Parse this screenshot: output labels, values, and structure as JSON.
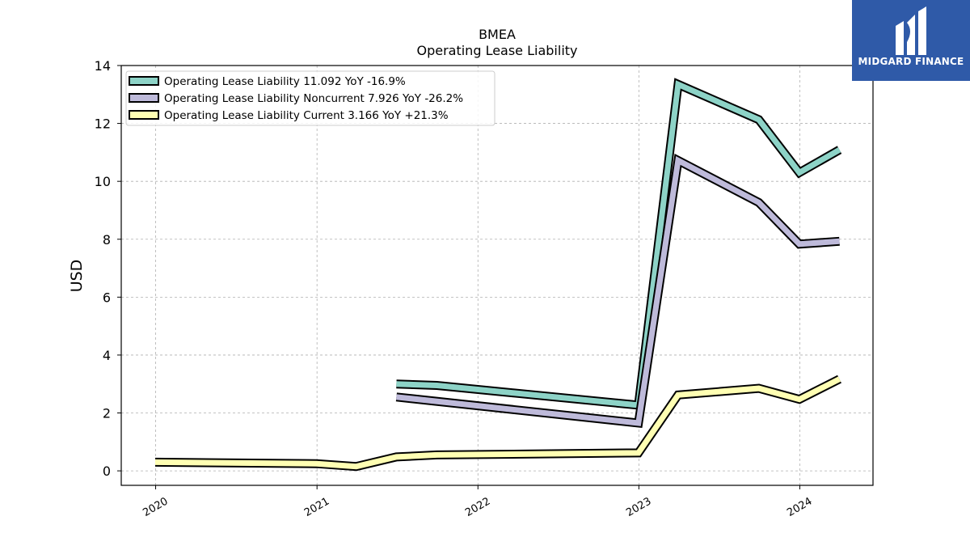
{
  "chart_data": {
    "type": "line",
    "title": "BMEA",
    "subtitle": "Operating Lease Liability",
    "xlabel": "",
    "ylabel": "USD",
    "x_tick_labels": [
      "2020",
      "2021",
      "2022",
      "2023",
      "2024"
    ],
    "y_ticks": [
      0,
      2,
      4,
      6,
      8,
      10,
      12,
      14
    ],
    "ylim": [
      -0.5,
      14
    ],
    "xlim": [
      "2019-10-15",
      "2024-06-15"
    ],
    "grid": true,
    "legend_position": "top-left",
    "series": [
      {
        "name": "Operating Lease Liability",
        "legend_label": "Operating Lease Liability  11.092 YoY -16.9%",
        "color": "#8dd3c7",
        "points": [
          {
            "x": "2021-06-30",
            "y": 3.0
          },
          {
            "x": "2021-09-30",
            "y": 2.95
          },
          {
            "x": "2022-12-31",
            "y": 2.27
          },
          {
            "x": "2023-03-31",
            "y": 13.35
          },
          {
            "x": "2023-09-30",
            "y": 12.13
          },
          {
            "x": "2023-12-31",
            "y": 10.3
          },
          {
            "x": "2024-03-31",
            "y": 11.09
          }
        ]
      },
      {
        "name": "Operating Lease Liability Noncurrent",
        "legend_label": "Operating Lease Liability Noncurrent  7.926 YoY -26.2%",
        "color": "#bebada",
        "points": [
          {
            "x": "2021-06-30",
            "y": 2.55
          },
          {
            "x": "2022-12-31",
            "y": 1.65
          },
          {
            "x": "2023-03-31",
            "y": 10.72
          },
          {
            "x": "2023-09-30",
            "y": 9.27
          },
          {
            "x": "2023-12-31",
            "y": 7.83
          },
          {
            "x": "2024-03-31",
            "y": 7.93
          }
        ]
      },
      {
        "name": "Operating Lease Liability Current",
        "legend_label": "Operating Lease Liability Current  3.166 YoY +21.3%",
        "color": "#ffffb3",
        "points": [
          {
            "x": "2019-12-31",
            "y": 0.3
          },
          {
            "x": "2020-12-31",
            "y": 0.25
          },
          {
            "x": "2021-03-31",
            "y": 0.15
          },
          {
            "x": "2021-06-30",
            "y": 0.48
          },
          {
            "x": "2021-09-30",
            "y": 0.55
          },
          {
            "x": "2022-12-31",
            "y": 0.62
          },
          {
            "x": "2023-03-31",
            "y": 2.62
          },
          {
            "x": "2023-09-30",
            "y": 2.85
          },
          {
            "x": "2023-12-31",
            "y": 2.47
          },
          {
            "x": "2024-03-31",
            "y": 3.17
          }
        ]
      }
    ]
  },
  "logo": {
    "text": "MIDGARD FINANCE",
    "icon": "midgard-logo-icon"
  }
}
